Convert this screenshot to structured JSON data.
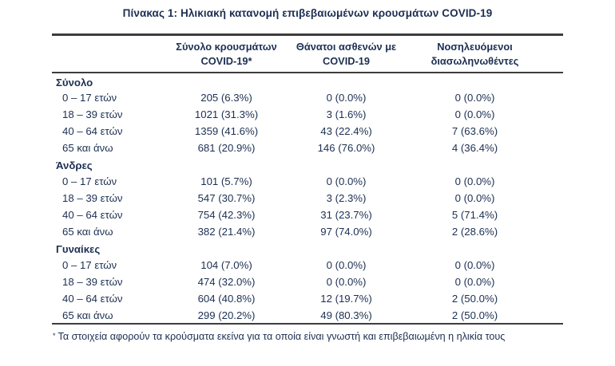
{
  "title": "Πίνακας 1: Ηλικιακή κατανομή επιβεβαιωμένων κρουσμάτων COVID-19",
  "table": {
    "columns": [
      {
        "line1": "Σύνολο κρουσμάτων",
        "line2": "COVID-19*"
      },
      {
        "line1": "Θάνατοι ασθενών με",
        "line2": "COVID-19"
      },
      {
        "line1": "Νοσηλευόμενοι",
        "line2": "διασωληνωθέντες"
      }
    ],
    "groups": [
      {
        "label": "Σύνολο",
        "rows": [
          {
            "age": "0 – 17 ετών",
            "cases": "205 (6.3%)",
            "deaths": "0 (0.0%)",
            "intubated": "0 (0.0%)"
          },
          {
            "age": "18 – 39 ετών",
            "cases": "1021 (31.3%)",
            "deaths": "3 (1.6%)",
            "intubated": "0 (0.0%)"
          },
          {
            "age": "40 – 64 ετών",
            "cases": "1359 (41.6%)",
            "deaths": "43 (22.4%)",
            "intubated": "7 (63.6%)"
          },
          {
            "age": "65 και άνω",
            "cases": "681 (20.9%)",
            "deaths": "146 (76.0%)",
            "intubated": "4 (36.4%)"
          }
        ]
      },
      {
        "label": "Άνδρες",
        "rows": [
          {
            "age": "0 – 17 ετών",
            "cases": "101 (5.7%)",
            "deaths": "0 (0.0%)",
            "intubated": "0 (0.0%)"
          },
          {
            "age": "18 – 39 ετών",
            "cases": "547 (30.7%)",
            "deaths": "3 (2.3%)",
            "intubated": "0 (0.0%)"
          },
          {
            "age": "40 – 64 ετών",
            "cases": "754 (42.3%)",
            "deaths": "31 (23.7%)",
            "intubated": "5 (71.4%)"
          },
          {
            "age": "65 και άνω",
            "cases": "382 (21.4%)",
            "deaths": "97 (74.0%)",
            "intubated": "2 (28.6%)"
          }
        ]
      },
      {
        "label": "Γυναίκες",
        "rows": [
          {
            "age": "0 – 17 ετών",
            "cases": "104 (7.0%)",
            "deaths": "0 (0.0%)",
            "intubated": "0 (0.0%)"
          },
          {
            "age": "18 – 39 ετών",
            "cases": "474 (32.0%)",
            "deaths": "0 (0.0%)",
            "intubated": "0 (0.0%)"
          },
          {
            "age": "40 – 64 ετών",
            "cases": "604 (40.8%)",
            "deaths": "12 (19.7%)",
            "intubated": "2 (50.0%)"
          },
          {
            "age": "65 και άνω",
            "cases": "299 (20.2%)",
            "deaths": "49 (80.3%)",
            "intubated": "2 (50.0%)"
          }
        ]
      }
    ]
  },
  "footnote": {
    "marker": "*",
    "text": "Τα στοιχεία αφορούν τα κρούσματα εκείνα για τα οποία είναι γνωστή και επιβεβαιωμένη η ηλικία τους"
  },
  "colors": {
    "text": "#1c2f52",
    "rule": "#3d3d3d",
    "background": "#ffffff"
  }
}
